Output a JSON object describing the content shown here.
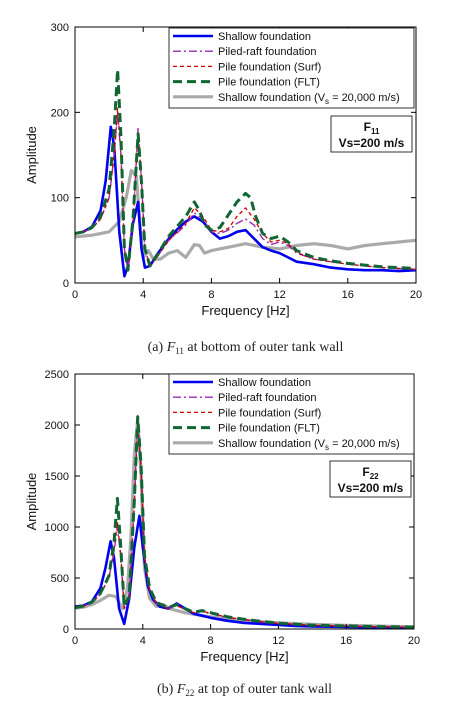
{
  "chart_data": [
    {
      "type": "line",
      "caption": {
        "prefix": "(a)",
        "symbol": "F",
        "sub": "11",
        "text": "at bottom of outer tank wall"
      },
      "xlabel": "Frequency [Hz]",
      "ylabel": "Amplitude",
      "xlim": [
        0,
        20
      ],
      "ylim": [
        0,
        300
      ],
      "xticks": [
        0,
        4,
        8,
        12,
        16,
        20
      ],
      "yticks": [
        0,
        100,
        200,
        300
      ],
      "grid": false,
      "legend_position": "top-right",
      "annotation": {
        "line1_main": "F",
        "line1_sub": "11",
        "line2": "Vs=200 m/s"
      },
      "series": [
        {
          "name": "Shallow foundation",
          "color": "#0000ee",
          "style": "solid",
          "x": [
            0,
            0.5,
            1.0,
            1.5,
            1.8,
            2.1,
            2.3,
            2.6,
            2.9,
            3.1,
            3.4,
            3.7,
            3.9,
            4.1,
            4.4,
            4.8,
            5.5,
            6.0,
            6.5,
            7.0,
            7.5,
            8.0,
            8.5,
            9.0,
            9.5,
            10.0,
            10.5,
            11.0,
            11.5,
            12.0,
            12.5,
            13.0,
            14.0,
            15.0,
            16.0,
            17.0,
            18.0,
            19.0,
            20.0
          ],
          "y": [
            58,
            60,
            66,
            85,
            120,
            183,
            160,
            60,
            8,
            20,
            70,
            95,
            40,
            18,
            20,
            33,
            52,
            63,
            72,
            78,
            72,
            60,
            52,
            55,
            60,
            62,
            52,
            42,
            38,
            35,
            30,
            25,
            22,
            18,
            16,
            15,
            15,
            14,
            15
          ]
        },
        {
          "name": "Piled-raft foundation",
          "color": "#9a2fb0",
          "style": "dashdot",
          "x": [
            0,
            0.5,
            1.0,
            1.5,
            2.0,
            2.3,
            2.5,
            2.7,
            2.9,
            3.1,
            3.4,
            3.7,
            3.9,
            4.1,
            4.4,
            4.8,
            5.5,
            6.5,
            7.0,
            7.5,
            8.0,
            8.5,
            9.0,
            9.5,
            10.0,
            10.5,
            11.0,
            11.5,
            12.0,
            12.5,
            13.0,
            14.0,
            15.0,
            16.0,
            17.0,
            18.0,
            19.0,
            20.0
          ],
          "y": [
            58,
            60,
            64,
            75,
            100,
            150,
            200,
            150,
            40,
            15,
            70,
            183,
            120,
            40,
            20,
            30,
            50,
            68,
            82,
            75,
            60,
            58,
            62,
            70,
            75,
            68,
            52,
            45,
            48,
            44,
            35,
            28,
            25,
            22,
            20,
            18,
            17,
            16
          ]
        },
        {
          "name": "Pile foundation (Surf)",
          "color": "#cc0000",
          "style": "dashed",
          "x": [
            0,
            0.5,
            1.0,
            1.5,
            2.0,
            2.3,
            2.5,
            2.7,
            2.9,
            3.1,
            3.4,
            3.7,
            3.9,
            4.1,
            4.4,
            4.8,
            5.5,
            6.5,
            7.0,
            7.5,
            8.0,
            8.5,
            9.0,
            9.5,
            10.0,
            10.5,
            11.0,
            11.5,
            12.0,
            12.5,
            13.0,
            14.0,
            15.0,
            16.0,
            17.0,
            18.0,
            19.0,
            20.0
          ],
          "y": [
            58,
            60,
            64,
            75,
            100,
            150,
            205,
            150,
            40,
            15,
            70,
            175,
            120,
            40,
            20,
            30,
            50,
            70,
            88,
            78,
            62,
            60,
            64,
            78,
            88,
            75,
            58,
            48,
            50,
            46,
            36,
            28,
            25,
            22,
            20,
            18,
            17,
            16
          ]
        },
        {
          "name": "Pile foundation (FLT)",
          "color": "#116633",
          "style": "longdash",
          "x": [
            0,
            0.5,
            1.0,
            1.5,
            2.0,
            2.3,
            2.5,
            2.7,
            2.9,
            3.1,
            3.4,
            3.7,
            3.9,
            4.1,
            4.4,
            4.8,
            5.5,
            6.5,
            7.0,
            7.3,
            7.6,
            8.0,
            8.5,
            9.0,
            9.5,
            10.0,
            10.3,
            10.6,
            11.0,
            11.5,
            12.0,
            12.5,
            13.0,
            14.0,
            15.0,
            16.0,
            17.0,
            18.0,
            19.0,
            20.0
          ],
          "y": [
            58,
            60,
            65,
            78,
            110,
            180,
            250,
            170,
            40,
            15,
            75,
            175,
            118,
            40,
            20,
            32,
            55,
            78,
            95,
            85,
            68,
            62,
            65,
            80,
            95,
            105,
            100,
            78,
            58,
            52,
            55,
            48,
            38,
            30,
            26,
            23,
            21,
            19,
            18,
            17
          ]
        },
        {
          "name": "Shallow foundation",
          "name_suffix": "(V",
          "name_sub": "s",
          "name_tail": " = 20,000 m/s)",
          "color": "#aaaaaa",
          "style": "solid-thick",
          "x": [
            0,
            1.0,
            2.0,
            2.6,
            3.0,
            3.3,
            3.6,
            3.8,
            4.0,
            4.3,
            4.6,
            5.0,
            5.5,
            6.0,
            6.5,
            7.0,
            7.3,
            7.6,
            8.0,
            9.0,
            10.0,
            11.0,
            12.0,
            13.0,
            14.0,
            15.0,
            15.5,
            16.0,
            17.0,
            18.0,
            19.0,
            20.0
          ],
          "y": [
            54,
            56,
            60,
            72,
            100,
            132,
            125,
            70,
            30,
            38,
            28,
            28,
            35,
            38,
            30,
            45,
            44,
            35,
            38,
            42,
            46,
            42,
            40,
            44,
            46,
            44,
            42,
            40,
            44,
            46,
            48,
            50
          ]
        }
      ]
    },
    {
      "type": "line",
      "caption": {
        "prefix": "(b)",
        "symbol": "F",
        "sub": "22",
        "text": "at top of outer tank wall"
      },
      "xlabel": "Frequency [Hz]",
      "ylabel": "Amplitude",
      "xlim": [
        0,
        20
      ],
      "ylim": [
        0,
        2500
      ],
      "xticks": [
        0,
        4,
        8,
        12,
        16,
        20
      ],
      "yticks": [
        0,
        500,
        1000,
        1500,
        2000,
        2500
      ],
      "grid": false,
      "legend_position": "top-right",
      "annotation": {
        "line1_main": "F",
        "line1_sub": "22",
        "line2": "Vs=200 m/s"
      },
      "series": [
        {
          "name": "Shallow foundation",
          "color": "#0000ee",
          "style": "solid",
          "x": [
            0,
            0.5,
            1.0,
            1.5,
            1.8,
            2.1,
            2.3,
            2.6,
            2.9,
            3.2,
            3.5,
            3.8,
            4.0,
            4.3,
            4.6,
            5.0,
            5.5,
            6.0,
            6.5,
            7.0,
            7.5,
            8.0,
            9.0,
            10.0,
            11.0,
            12.0,
            13.0,
            14.0,
            16.0,
            18.0,
            20.0
          ],
          "y": [
            220,
            230,
            270,
            400,
            600,
            860,
            700,
            200,
            50,
            300,
            800,
            1110,
            800,
            420,
            290,
            220,
            200,
            250,
            200,
            150,
            130,
            110,
            80,
            60,
            50,
            40,
            30,
            25,
            20,
            15,
            10
          ]
        },
        {
          "name": "Piled-raft foundation",
          "color": "#9a2fb0",
          "style": "dashdot",
          "x": [
            0,
            0.5,
            1.0,
            1.5,
            2.0,
            2.3,
            2.5,
            2.7,
            2.9,
            3.2,
            3.5,
            3.7,
            3.9,
            4.1,
            4.4,
            4.8,
            5.5,
            6.0,
            6.5,
            7.0,
            7.5,
            8.0,
            9.0,
            10.0,
            11.0,
            12.0,
            13.0,
            14.0,
            16.0,
            18.0,
            20.0
          ],
          "y": [
            210,
            225,
            260,
            340,
            500,
            750,
            1000,
            700,
            200,
            300,
            1200,
            2090,
            1600,
            700,
            380,
            250,
            200,
            230,
            190,
            160,
            170,
            150,
            110,
            90,
            70,
            55,
            45,
            35,
            28,
            22,
            18
          ]
        },
        {
          "name": "Pile foundation (Surf)",
          "color": "#cc0000",
          "style": "dashed",
          "x": [
            0,
            0.5,
            1.0,
            1.5,
            2.0,
            2.3,
            2.5,
            2.7,
            2.9,
            3.2,
            3.5,
            3.7,
            3.9,
            4.1,
            4.4,
            4.8,
            5.5,
            6.0,
            6.5,
            7.0,
            7.5,
            8.0,
            9.0,
            10.0,
            11.0,
            12.0,
            13.0,
            14.0,
            16.0,
            18.0,
            20.0
          ],
          "y": [
            210,
            225,
            260,
            340,
            500,
            780,
            1050,
            720,
            200,
            300,
            1200,
            2000,
            1550,
            700,
            380,
            250,
            200,
            230,
            190,
            160,
            175,
            155,
            115,
            92,
            72,
            57,
            46,
            36,
            28,
            22,
            18
          ]
        },
        {
          "name": "Pile foundation (FLT)",
          "color": "#116633",
          "style": "longdash",
          "x": [
            0,
            0.5,
            1.0,
            1.5,
            2.0,
            2.3,
            2.5,
            2.7,
            2.9,
            3.2,
            3.5,
            3.7,
            3.9,
            4.1,
            4.4,
            4.8,
            5.5,
            6.0,
            6.5,
            7.0,
            7.5,
            8.0,
            9.0,
            10.0,
            11.0,
            12.0,
            13.0,
            14.0,
            16.0,
            18.0,
            20.0
          ],
          "y": [
            210,
            225,
            265,
            350,
            520,
            850,
            1280,
            800,
            220,
            320,
            1250,
            2080,
            1600,
            720,
            400,
            260,
            210,
            240,
            200,
            165,
            180,
            160,
            120,
            95,
            75,
            58,
            47,
            37,
            29,
            23,
            19
          ]
        },
        {
          "name": "Shallow foundation",
          "name_suffix": "(V",
          "name_sub": "s",
          "name_tail": " = 20,000 m/s)",
          "color": "#aaaaaa",
          "style": "solid-thick",
          "x": [
            0,
            0.5,
            1.0,
            1.5,
            2.0,
            2.4,
            2.8,
            3.1,
            3.3,
            3.5,
            3.7,
            3.9,
            4.1,
            4.4,
            4.8,
            5.2,
            5.6,
            6.0,
            6.5,
            7.0,
            7.5,
            8.0,
            9.0,
            10.0,
            11.0,
            12.0,
            14.0,
            16.0,
            18.0,
            20.0
          ],
          "y": [
            205,
            215,
            240,
            280,
            330,
            320,
            200,
            400,
            900,
            1700,
            2050,
            1500,
            600,
            300,
            220,
            240,
            200,
            180,
            160,
            145,
            130,
            120,
            100,
            85,
            70,
            60,
            45,
            35,
            28,
            22
          ]
        }
      ]
    }
  ]
}
